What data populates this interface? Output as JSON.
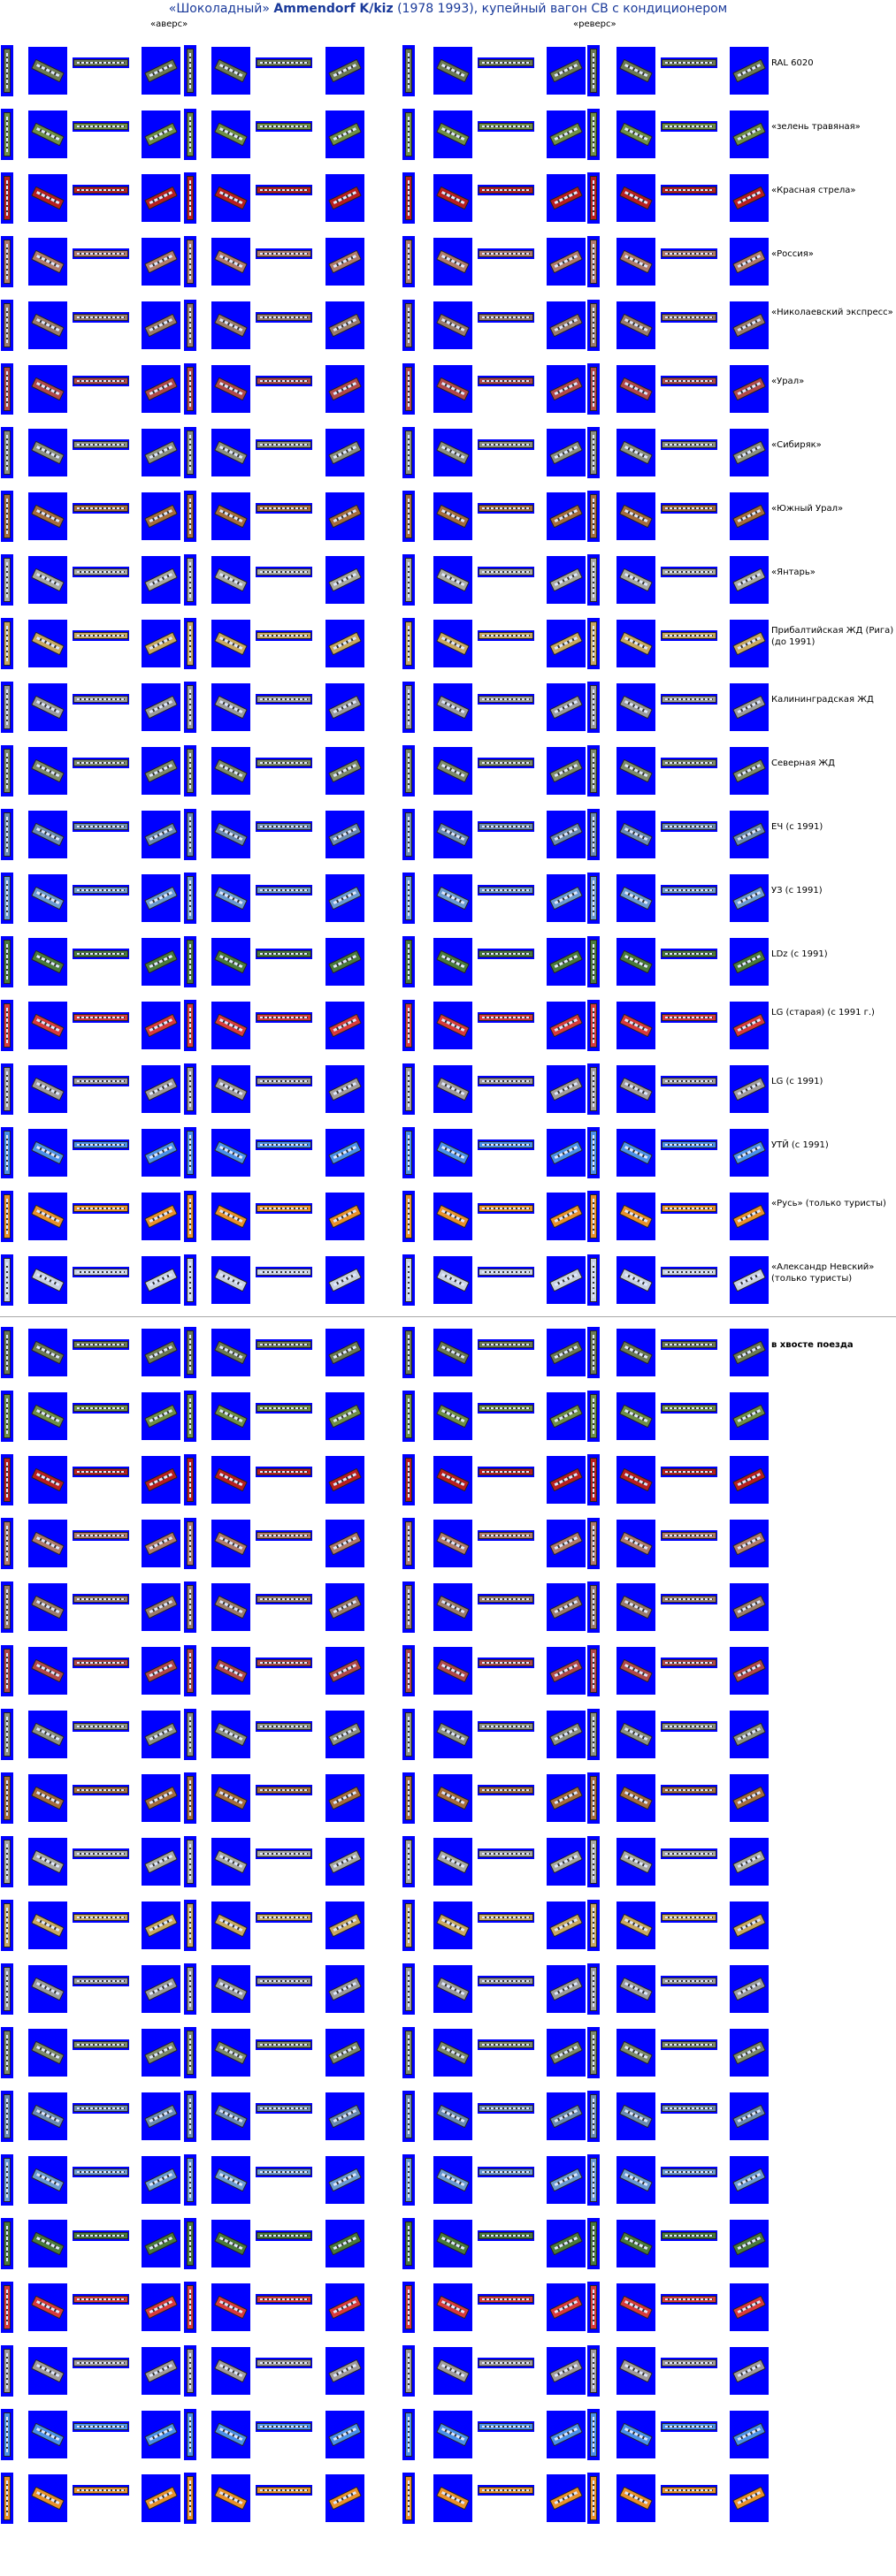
{
  "title": {
    "part1": "«Шоколадный»",
    "part2": "Ammendorf K/kiz",
    "part3": "(1978 1993), купейный вагон СВ с кондиционером"
  },
  "labels": {
    "front": "«аверс»",
    "back": "«реверс»"
  },
  "tail_label": "в хвосте поезда",
  "liveries": [
    {
      "name": "RAL 6020",
      "color": "#6c7a53"
    },
    {
      "name": "«зелень травяная»",
      "color": "#6f8f45"
    },
    {
      "name": "«Красная стрела»",
      "color": "#b81e1e"
    },
    {
      "name": "«Россия»",
      "color": "#b07a6a"
    },
    {
      "name": "«Николаевский экспресс»",
      "color": "#9a7a6a"
    },
    {
      "name": "«Урал»",
      "color": "#b04848"
    },
    {
      "name": "«Сибиряк»",
      "color": "#8c9080"
    },
    {
      "name": "«Южный Урал»",
      "color": "#a56c3c"
    },
    {
      "name": "«Янтарь»",
      "color": "#a8a8a0"
    },
    {
      "name": "Прибалтийская ЖД (Рига) (до 1991)",
      "color": "#c8a860"
    },
    {
      "name": "Калининградская ЖД",
      "color": "#9a9a9a"
    },
    {
      "name": "Северная ЖД",
      "color": "#7d8a6a"
    },
    {
      "name": "ЕЧ (с 1991)",
      "color": "#6a8ab0"
    },
    {
      "name": "УЗ (с 1991)",
      "color": "#6a9ad0"
    },
    {
      "name": "LDz (с 1991)",
      "color": "#4a7a3a"
    },
    {
      "name": "LG (старая) (с 1991 г.)",
      "color": "#d83a3a"
    },
    {
      "name": "LG (с 1991)",
      "color": "#a09a9a"
    },
    {
      "name": "УТЙ (с 1991)",
      "color": "#4a90e8"
    },
    {
      "name": "«Русь» (только туристы)",
      "color": "#e8902a"
    },
    {
      "name": "«Александр Невский» (только туристы)",
      "color": "#c8d0e0"
    }
  ]
}
